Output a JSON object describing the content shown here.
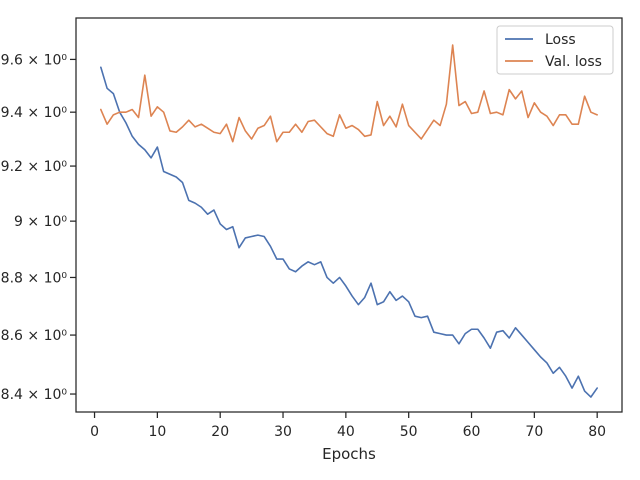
{
  "chart_data": {
    "type": "line",
    "xlabel": "Epochs",
    "ylabel": "",
    "y_scale": "log",
    "xlim": [
      -2.95,
      83.95
    ],
    "ylim": [
      8.34,
      9.76
    ],
    "xticks": [
      0,
      10,
      20,
      30,
      40,
      50,
      60,
      70,
      80
    ],
    "yticks": [
      8.4,
      8.6,
      8.8,
      9.0,
      9.2,
      9.4,
      9.6
    ],
    "ytick_labels": [
      "8.4 × 10⁰",
      "8.6 × 10⁰",
      "8.8 × 10⁰",
      "9 × 10⁰",
      "9.2 × 10⁰",
      "9.4 × 10⁰",
      "9.6 × 10⁰"
    ],
    "grid": false,
    "legend_position": "top-right",
    "x": [
      1,
      2,
      3,
      4,
      5,
      6,
      7,
      8,
      9,
      10,
      11,
      12,
      13,
      14,
      15,
      16,
      17,
      18,
      19,
      20,
      21,
      22,
      23,
      24,
      25,
      26,
      27,
      28,
      29,
      30,
      31,
      32,
      33,
      34,
      35,
      36,
      37,
      38,
      39,
      40,
      41,
      42,
      43,
      44,
      45,
      46,
      47,
      48,
      49,
      50,
      51,
      52,
      53,
      54,
      55,
      56,
      57,
      58,
      59,
      60,
      61,
      62,
      63,
      64,
      65,
      66,
      67,
      68,
      69,
      70,
      71,
      72,
      73,
      74,
      75,
      76,
      77,
      78,
      79,
      80
    ],
    "series": [
      {
        "name": "Loss",
        "color": "#4c72b0",
        "values": [
          9.57,
          9.49,
          9.47,
          9.4,
          9.36,
          9.31,
          9.28,
          9.26,
          9.23,
          9.27,
          9.18,
          9.17,
          9.16,
          9.14,
          9.075,
          9.065,
          9.05,
          9.025,
          9.04,
          8.99,
          8.97,
          8.98,
          8.905,
          8.94,
          8.945,
          8.95,
          8.945,
          8.91,
          8.865,
          8.865,
          8.83,
          8.82,
          8.84,
          8.855,
          8.845,
          8.855,
          8.8,
          8.78,
          8.8,
          8.77,
          8.735,
          8.705,
          8.73,
          8.78,
          8.705,
          8.715,
          8.75,
          8.72,
          8.735,
          8.715,
          8.665,
          8.66,
          8.665,
          8.61,
          8.605,
          8.6,
          8.6,
          8.57,
          8.605,
          8.62,
          8.62,
          8.59,
          8.555,
          8.61,
          8.615,
          8.59,
          8.625,
          8.6,
          8.575,
          8.55,
          8.525,
          8.505,
          8.47,
          8.49,
          8.46,
          8.42,
          8.46,
          8.41,
          8.39,
          8.42
        ]
      },
      {
        "name": "Val. loss",
        "color": "#dd8452",
        "values": [
          9.41,
          9.355,
          9.39,
          9.4,
          9.4,
          9.41,
          9.38,
          9.54,
          9.385,
          9.42,
          9.4,
          9.33,
          9.325,
          9.345,
          9.37,
          9.345,
          9.355,
          9.34,
          9.325,
          9.32,
          9.355,
          9.29,
          9.38,
          9.33,
          9.3,
          9.34,
          9.35,
          9.385,
          9.29,
          9.325,
          9.325,
          9.355,
          9.325,
          9.365,
          9.37,
          9.345,
          9.32,
          9.31,
          9.39,
          9.34,
          9.35,
          9.335,
          9.31,
          9.315,
          9.44,
          9.35,
          9.385,
          9.345,
          9.43,
          9.35,
          9.325,
          9.3,
          9.335,
          9.37,
          9.35,
          9.43,
          9.655,
          9.425,
          9.44,
          9.395,
          9.4,
          9.48,
          9.395,
          9.4,
          9.39,
          9.485,
          9.45,
          9.48,
          9.38,
          9.435,
          9.4,
          9.385,
          9.35,
          9.39,
          9.39,
          9.355,
          9.355,
          9.46,
          9.4,
          9.39
        ]
      }
    ]
  }
}
